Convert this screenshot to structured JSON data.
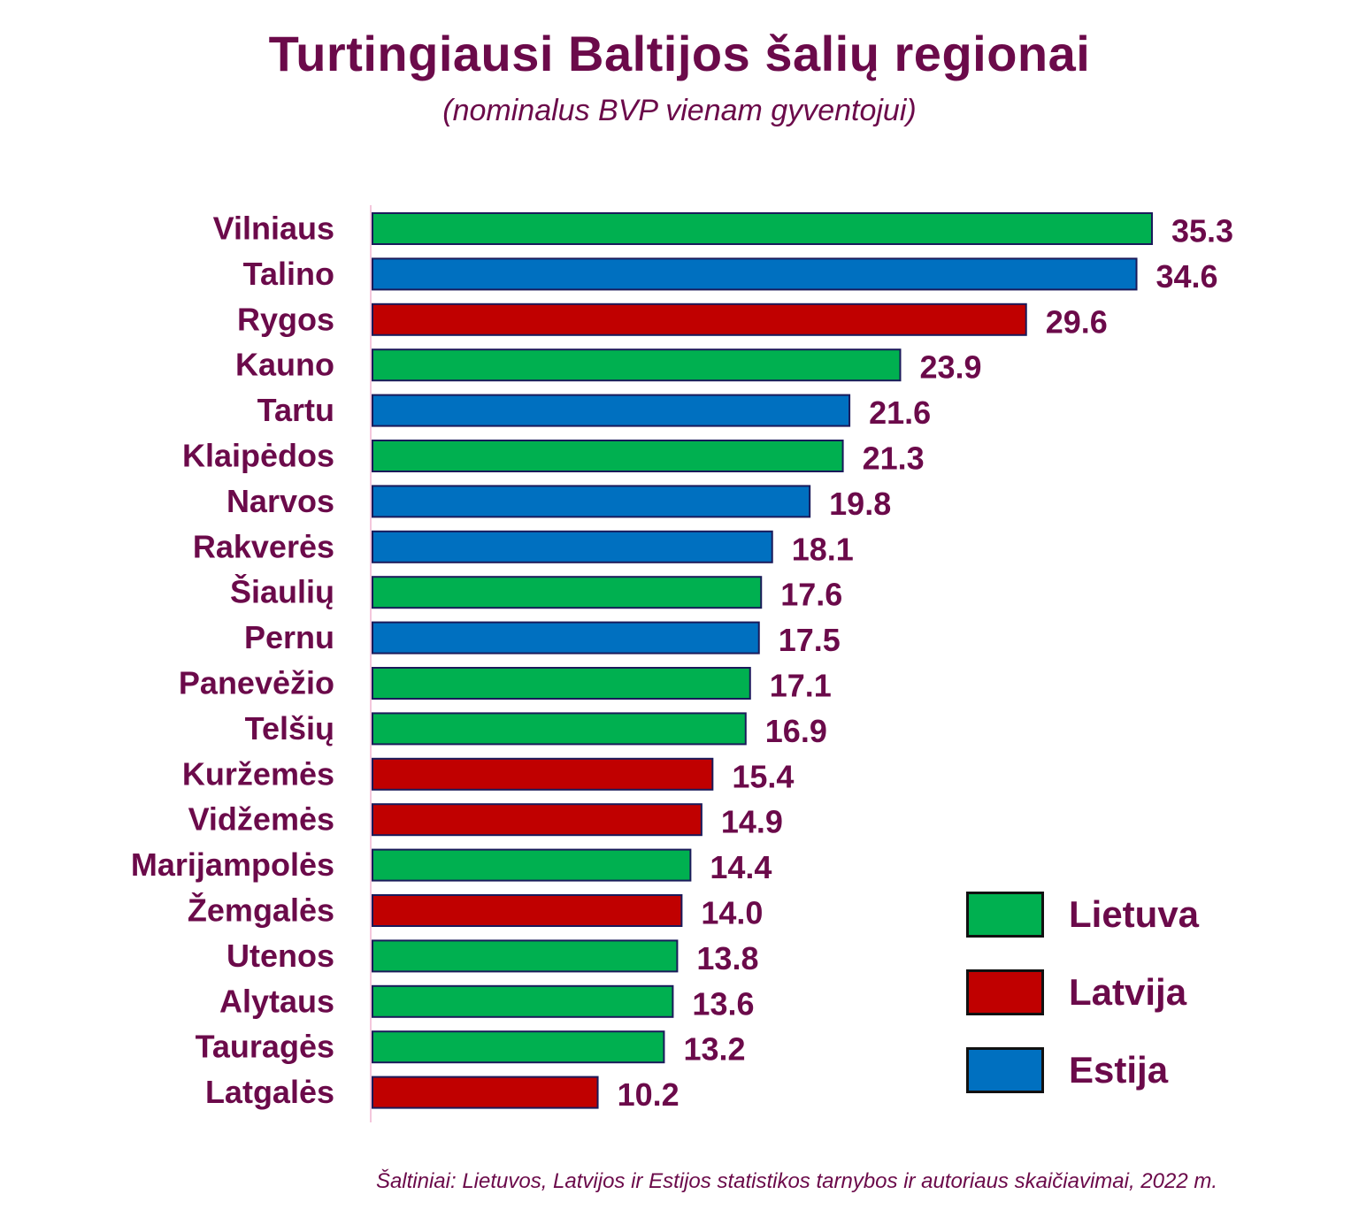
{
  "title": "Turtingiausi Baltijos šalių regionai",
  "subtitle": "(nominalus BVP vienam gyventojui)",
  "source": "Šaltiniai: Lietuvos, Latvijos ir Estijos statistikos tarnybos  ir autoriaus skaičiavimai, 2022 m.",
  "colors": {
    "Lietuva": "#00b050",
    "Latvija": "#c00000",
    "Estija": "#0070c0",
    "bar_border": "#1a1a5a",
    "axis": "#f4c7dc"
  },
  "legend": [
    {
      "label": "Lietuva",
      "color": "#00b050"
    },
    {
      "label": "Latvija",
      "color": "#c00000"
    },
    {
      "label": "Estija",
      "color": "#0070c0"
    }
  ],
  "chart_data": {
    "type": "bar",
    "orientation": "horizontal",
    "title": "Turtingiausi Baltijos šalių regionai",
    "subtitle": "(nominalus BVP vienam gyventojui)",
    "categories": [
      "Vilniaus",
      "Talino",
      "Rygos",
      "Kauno",
      "Tartu",
      "Klaipėdos",
      "Narvos",
      "Rakverės",
      "Šiaulių",
      "Pernu",
      "Panevėžio",
      "Telšių",
      "Kuržemės",
      "Vidžemės",
      "Marijampolės",
      "Žemgalės",
      "Utenos",
      "Alytaus",
      "Tauragės",
      "Latgalės"
    ],
    "values": [
      35.3,
      34.6,
      29.6,
      23.9,
      21.6,
      21.3,
      19.8,
      18.1,
      17.6,
      17.5,
      17.1,
      16.9,
      15.4,
      14.9,
      14.4,
      14.0,
      13.8,
      13.6,
      13.2,
      10.2
    ],
    "value_labels": [
      "35.3",
      "34.6",
      "29.6",
      "23.9",
      "21.6",
      "21.3",
      "19.8",
      "18.1",
      "17.6",
      "17.5",
      "17.1",
      "16.9",
      "15.4",
      "14.9",
      "14.4",
      "14.0",
      "13.8",
      "13.6",
      "13.2",
      "10.2"
    ],
    "country": [
      "Lietuva",
      "Estija",
      "Latvija",
      "Lietuva",
      "Estija",
      "Lietuva",
      "Estija",
      "Estija",
      "Lietuva",
      "Estija",
      "Lietuva",
      "Lietuva",
      "Latvija",
      "Latvija",
      "Lietuva",
      "Latvija",
      "Lietuva",
      "Lietuva",
      "Lietuva",
      "Latvija"
    ],
    "xlim": [
      0,
      35.3
    ],
    "xlabel": "",
    "ylabel": "",
    "grid": false,
    "legend_position": "bottom-right"
  }
}
